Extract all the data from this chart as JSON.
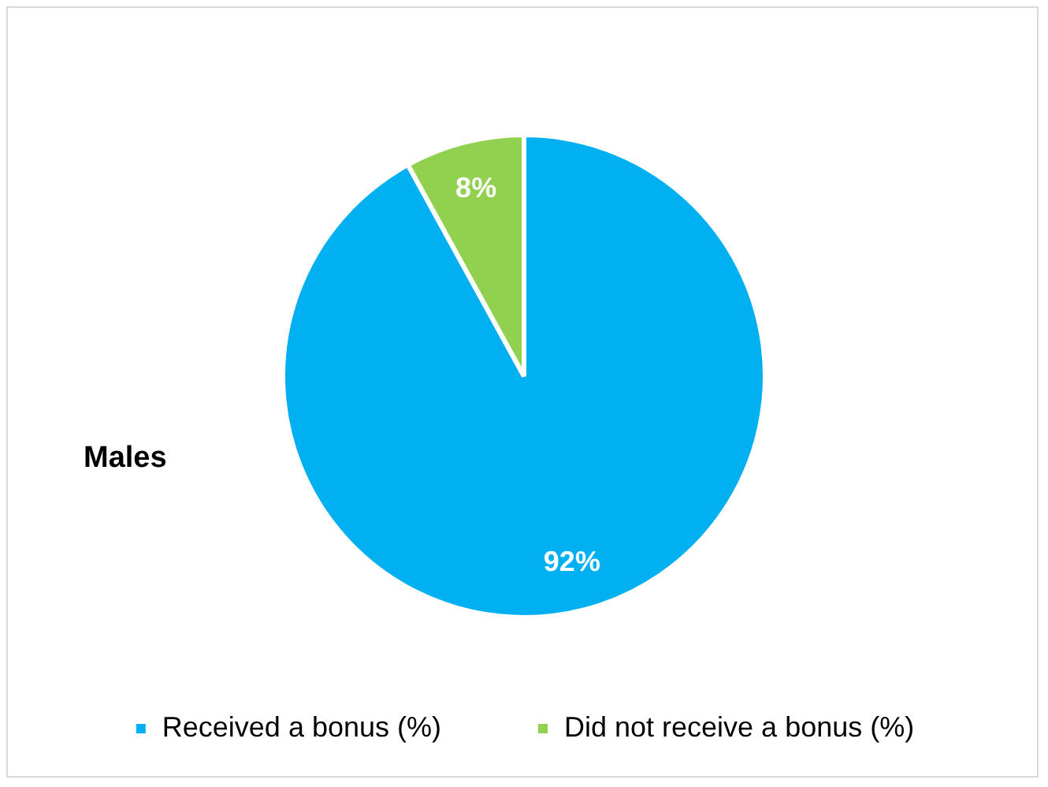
{
  "chart_data": {
    "type": "pie",
    "title": "Males",
    "categories": [
      "Received a bonus (%)",
      "Did not receive a bonus (%)"
    ],
    "values": [
      92,
      8
    ],
    "colors": [
      "#00b0f0",
      "#92d050"
    ],
    "value_labels": [
      "92%",
      "8%"
    ],
    "legend": "bottom"
  }
}
